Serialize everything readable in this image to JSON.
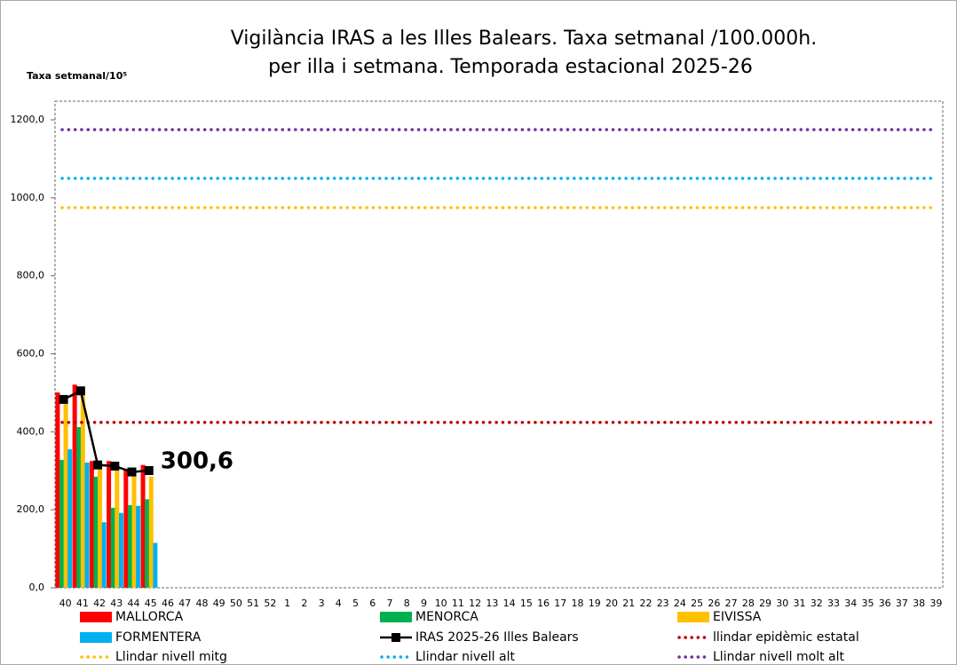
{
  "chart_data": {
    "type": "bar",
    "title": [
      "Vigilància IRAS a les Illes Balears.  Taxa setmanal /100.000h.",
      "per illa i setmana. Temporada estacional 2025-26"
    ],
    "y_axis_label": "Taxa setmanal/10⁵",
    "categories": [
      "40",
      "41",
      "42",
      "43",
      "44",
      "45",
      "46",
      "47",
      "48",
      "49",
      "50",
      "51",
      "52",
      "1",
      "2",
      "3",
      "4",
      "5",
      "6",
      "7",
      "8",
      "9",
      "10",
      "11",
      "12",
      "13",
      "14",
      "15",
      "16",
      "17",
      "18",
      "19",
      "20",
      "21",
      "22",
      "23",
      "24",
      "25",
      "26",
      "27",
      "28",
      "29",
      "30",
      "31",
      "32",
      "33",
      "34",
      "35",
      "36",
      "37",
      "38",
      "39"
    ],
    "ylim": [
      0,
      1200
    ],
    "yticks": [
      {
        "value": 0,
        "label": "0,0"
      },
      {
        "value": 200,
        "label": "200,0"
      },
      {
        "value": 400,
        "label": "400,0"
      },
      {
        "value": 600,
        "label": "600,0"
      },
      {
        "value": 800,
        "label": "800,0"
      },
      {
        "value": 1000,
        "label": "1000,0"
      },
      {
        "value": 1200,
        "label": "1200,0"
      }
    ],
    "series": [
      {
        "name": "MALLORCA",
        "type": "bar",
        "color": "#ff0000",
        "values": [
          501,
          521,
          325,
          325,
          305,
          315,
          null,
          null,
          null,
          null,
          null,
          null,
          null,
          null,
          null,
          null,
          null,
          null,
          null,
          null,
          null,
          null,
          null,
          null,
          null,
          null,
          null,
          null,
          null,
          null,
          null,
          null,
          null,
          null,
          null,
          null,
          null,
          null,
          null,
          null,
          null,
          null,
          null,
          null,
          null,
          null,
          null,
          null,
          null,
          null,
          null,
          null
        ]
      },
      {
        "name": "MENORCA",
        "type": "bar",
        "color": "#00b050",
        "values": [
          328,
          412,
          285,
          205,
          212,
          227,
          null,
          null,
          null,
          null,
          null,
          null,
          null,
          null,
          null,
          null,
          null,
          null,
          null,
          null,
          null,
          null,
          null,
          null,
          null,
          null,
          null,
          null,
          null,
          null,
          null,
          null,
          null,
          null,
          null,
          null,
          null,
          null,
          null,
          null,
          null,
          null,
          null,
          null,
          null,
          null,
          null,
          null,
          null,
          null,
          null,
          null
        ]
      },
      {
        "name": "EIVISSA",
        "type": "bar",
        "color": "#ffc000",
        "values": [
          471,
          505,
          310,
          315,
          290,
          285,
          null,
          null,
          null,
          null,
          null,
          null,
          null,
          null,
          null,
          null,
          null,
          null,
          null,
          null,
          null,
          null,
          null,
          null,
          null,
          null,
          null,
          null,
          null,
          null,
          null,
          null,
          null,
          null,
          null,
          null,
          null,
          null,
          null,
          null,
          null,
          null,
          null,
          null,
          null,
          null,
          null,
          null,
          null,
          null,
          null,
          null
        ]
      },
      {
        "name": "FORMENTERA",
        "type": "bar",
        "color": "#00b0f0",
        "values": [
          355,
          321,
          168,
          192,
          210,
          115,
          null,
          null,
          null,
          null,
          null,
          null,
          null,
          null,
          null,
          null,
          null,
          null,
          null,
          null,
          null,
          null,
          null,
          null,
          null,
          null,
          null,
          null,
          null,
          null,
          null,
          null,
          null,
          null,
          null,
          null,
          null,
          null,
          null,
          null,
          null,
          null,
          null,
          null,
          null,
          null,
          null,
          null,
          null,
          null,
          null,
          null
        ]
      },
      {
        "name": "IRAS 2025-26 Illes Balears",
        "type": "line",
        "color": "#000000",
        "values": [
          483,
          505,
          315,
          312,
          297,
          300.6,
          null,
          null,
          null,
          null,
          null,
          null,
          null,
          null,
          null,
          null,
          null,
          null,
          null,
          null,
          null,
          null,
          null,
          null,
          null,
          null,
          null,
          null,
          null,
          null,
          null,
          null,
          null,
          null,
          null,
          null,
          null,
          null,
          null,
          null,
          null,
          null,
          null,
          null,
          null,
          null,
          null,
          null,
          null,
          null,
          null,
          null
        ],
        "value_labels": [
          null,
          null,
          null,
          null,
          null,
          "300,6",
          null,
          null,
          null,
          null,
          null,
          null,
          null,
          null,
          null,
          null,
          null,
          null,
          null,
          null,
          null,
          null,
          null,
          null,
          null,
          null,
          null,
          null,
          null,
          null,
          null,
          null,
          null,
          null,
          null,
          null,
          null,
          null,
          null,
          null,
          null,
          null,
          null,
          null,
          null,
          null,
          null,
          null,
          null,
          null,
          null,
          null
        ]
      },
      {
        "name": "llindar epidèmic estatal",
        "type": "threshold",
        "color": "#c00000",
        "value": 424
      },
      {
        "name": "Llindar nivell mitg",
        "type": "threshold",
        "color": "#ffc000",
        "value": 975
      },
      {
        "name": "Llindar nivell alt",
        "type": "threshold",
        "color": "#00b0f0",
        "value": 1050
      },
      {
        "name": "Llindar nivell molt alt",
        "type": "threshold",
        "color": "#7030a0",
        "value": 1175
      }
    ]
  }
}
